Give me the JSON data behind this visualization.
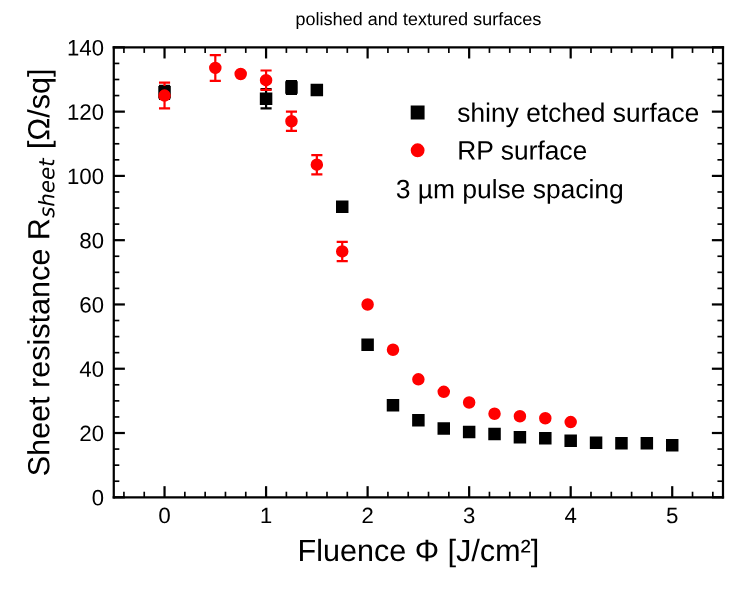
{
  "chart_data": {
    "type": "scatter",
    "title": "polished and textured surfaces",
    "xlabel": "Fluence Φ [J/cm²]",
    "ylabel": "Sheet resistance R$_{sheet}$ [Ω/sq]",
    "xlim": [
      -0.5,
      5.5
    ],
    "xticks": [
      0,
      1,
      2,
      3,
      4,
      5
    ],
    "ylim": [
      0,
      140
    ],
    "yticks": [
      0,
      20,
      40,
      60,
      80,
      100,
      120,
      140
    ],
    "grid": false,
    "legend": "top right",
    "annotations": [
      "3 µm pulse spacing"
    ],
    "series": [
      {
        "name": "shiny etched surface",
        "color": "#000000",
        "marker": "square",
        "x": [
          0,
          1,
          1.25,
          1.5,
          1.75,
          2,
          2.25,
          2.5,
          2.75,
          3,
          3.25,
          3.5,
          3.75,
          4,
          4.25,
          4.5,
          4.75,
          5
        ],
        "values": [
          126,
          124,
          127.5,
          126.7,
          90.4,
          47.5,
          28.6,
          24,
          21.4,
          20.3,
          19.7,
          18.7,
          18.4,
          17.6,
          17,
          16.8,
          16.8,
          16.2
        ],
        "errors": [
          2,
          3,
          2,
          null,
          null,
          null,
          null,
          null,
          null,
          null,
          null,
          null,
          null,
          null,
          null,
          null,
          null,
          null
        ]
      },
      {
        "name": "RP surface",
        "color": "#ff0000",
        "marker": "circle",
        "x": [
          0,
          0.5,
          0.75,
          1,
          1.25,
          1.5,
          1.75,
          2,
          2.25,
          2.5,
          2.75,
          3,
          3.25,
          3.5,
          3.75,
          4
        ],
        "values": [
          125,
          133.6,
          131.7,
          129.8,
          117,
          103.5,
          76.5,
          60,
          45.9,
          36.7,
          32.8,
          29.5,
          26,
          25.2,
          24.6,
          23.4
        ],
        "errors": [
          4,
          4,
          null,
          3,
          3,
          3,
          3,
          null,
          null,
          null,
          null,
          null,
          null,
          null,
          null,
          null
        ]
      }
    ]
  }
}
